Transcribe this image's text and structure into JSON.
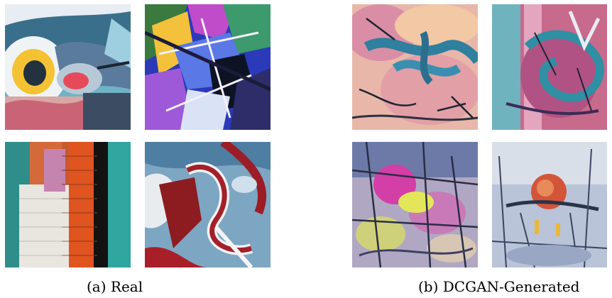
{
  "figure": {
    "panel_a": {
      "caption": "(a) Real",
      "images": [
        "graffiti-real-1",
        "graffiti-real-2",
        "graffiti-real-3",
        "graffiti-real-4"
      ]
    },
    "panel_b": {
      "caption": "(b) DCGAN-Generated",
      "images": [
        "graffiti-generated-1",
        "graffiti-generated-2",
        "graffiti-generated-3",
        "graffiti-generated-4"
      ]
    }
  }
}
